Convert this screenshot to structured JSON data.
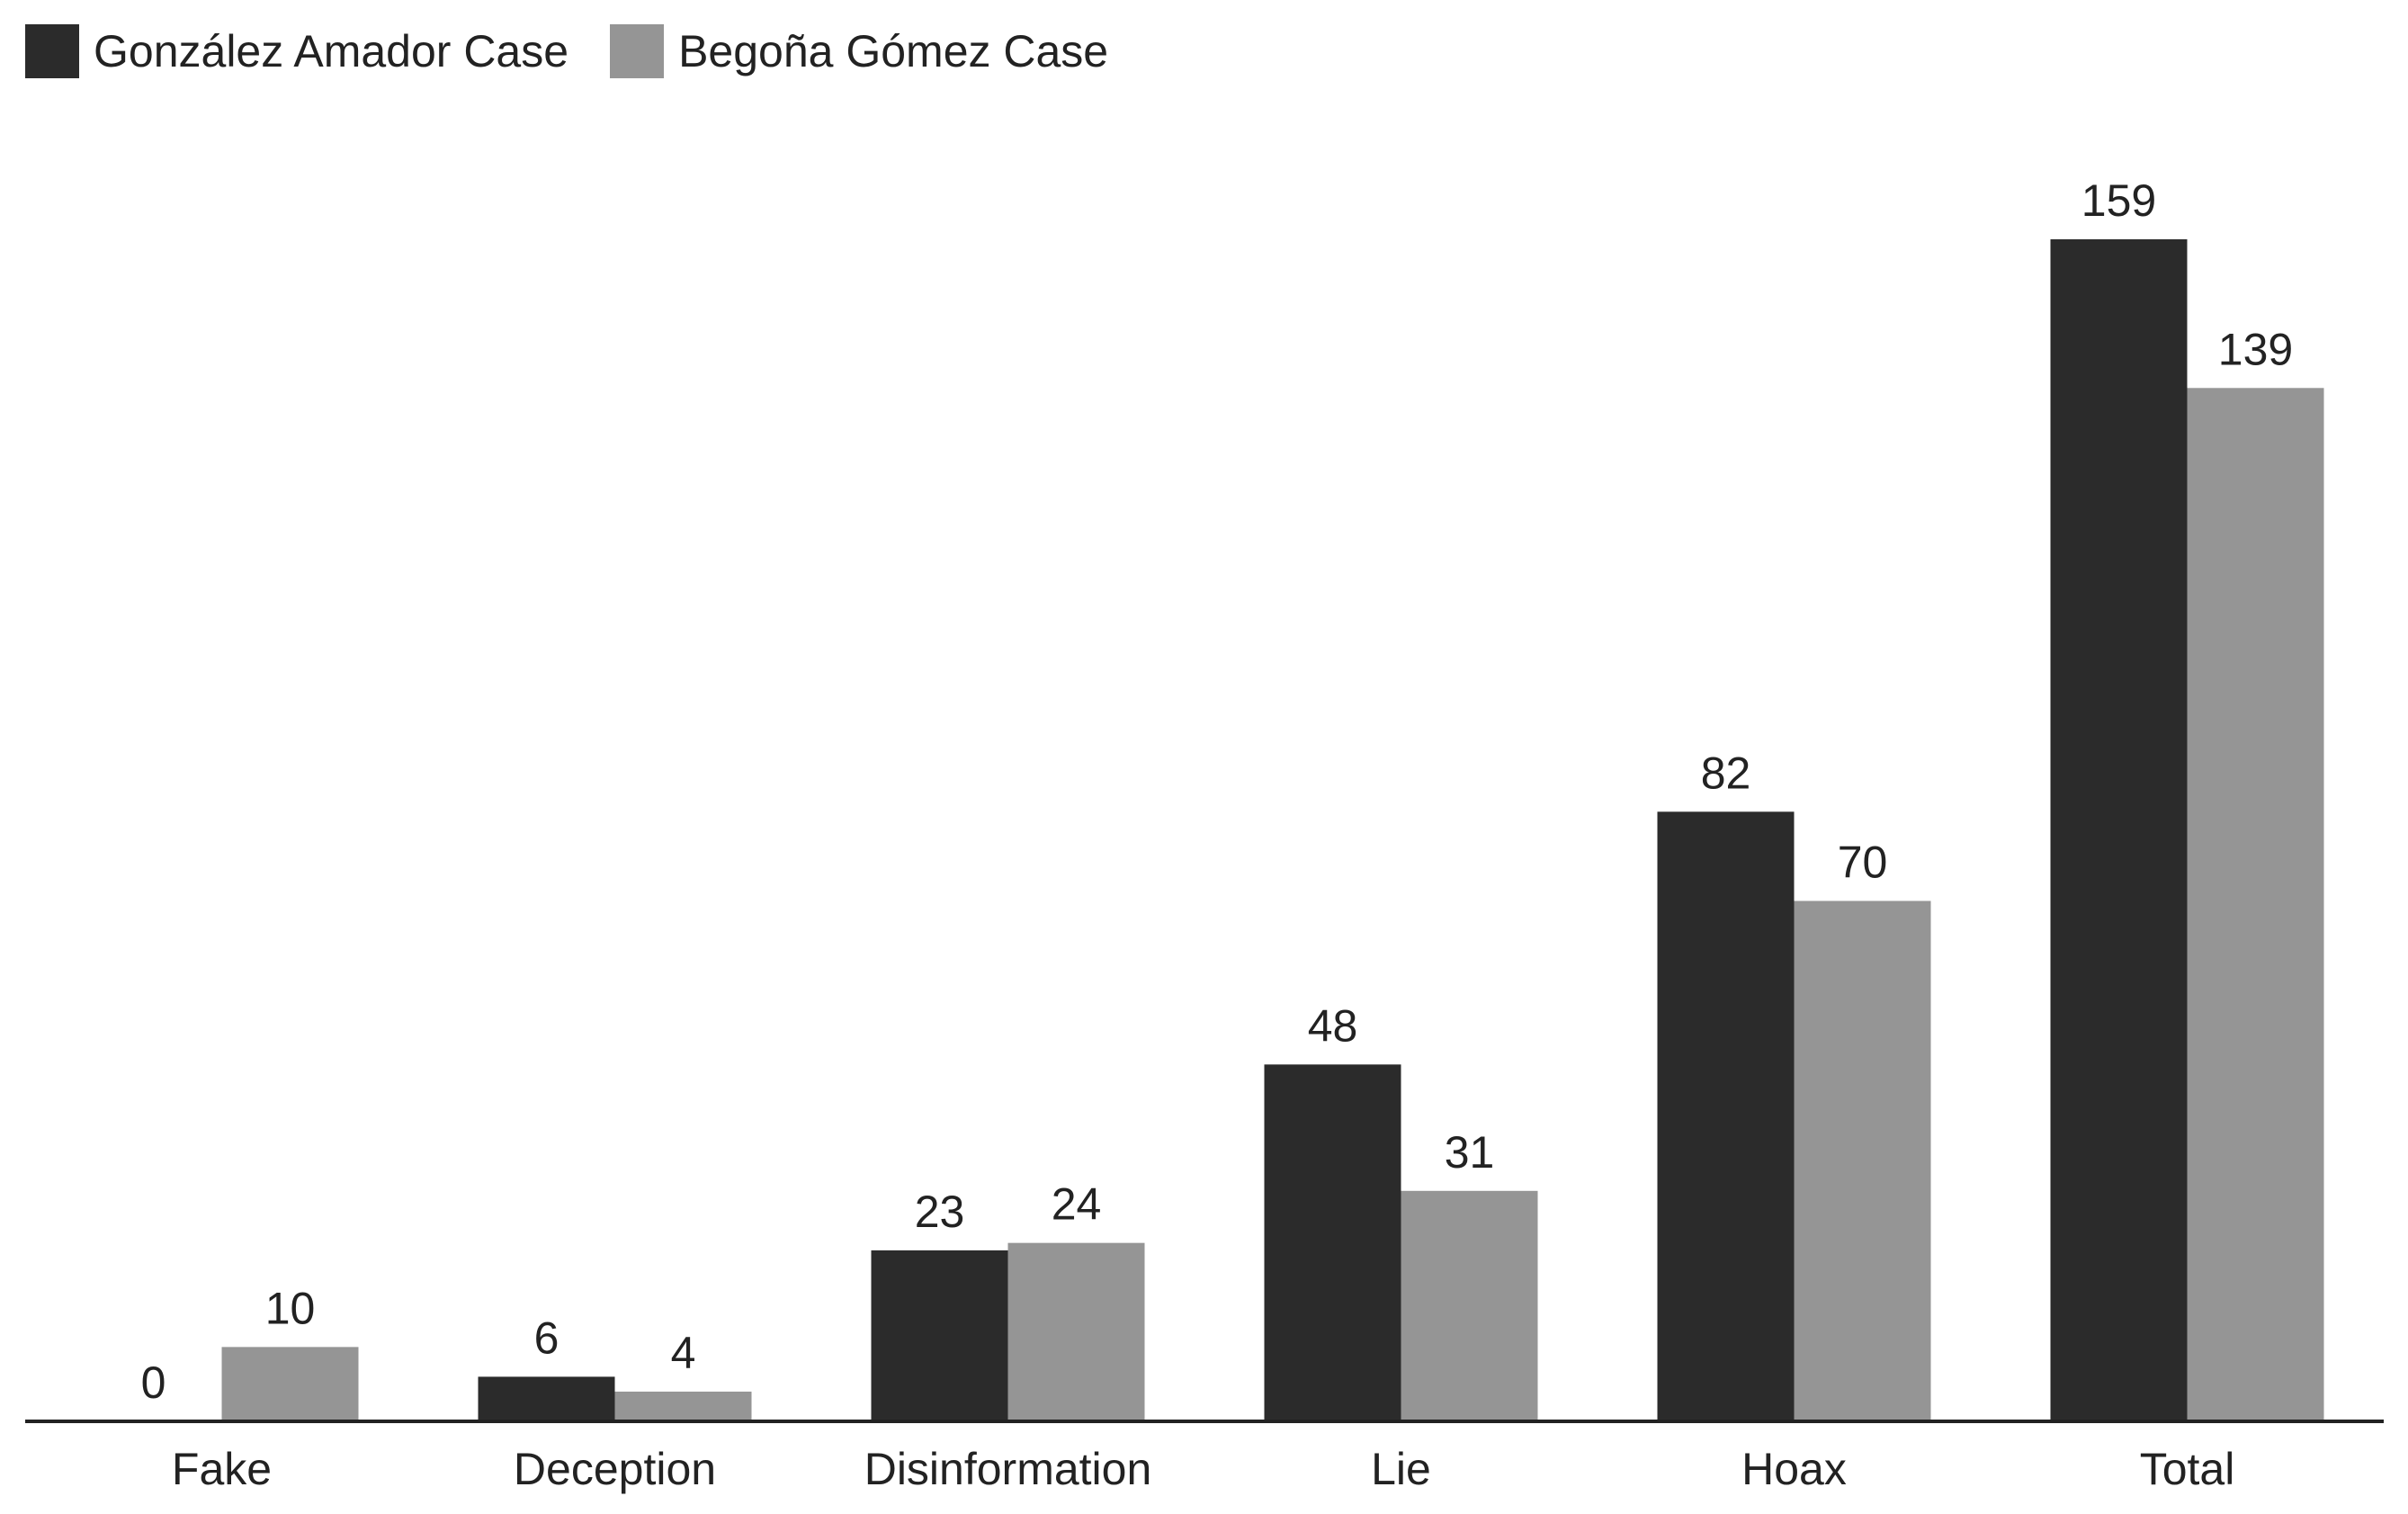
{
  "chart_data": {
    "type": "bar",
    "title": "",
    "xlabel": "",
    "ylabel": "",
    "categories": [
      "Fake",
      "Deception",
      "Disinformation",
      "Lie",
      "Hoax",
      "Total"
    ],
    "series": [
      {
        "name": "González Amador Case",
        "color": "#2b2b2b",
        "values": [
          0,
          6,
          23,
          48,
          82,
          159
        ]
      },
      {
        "name": "Begoña Gómez Case",
        "color": "#959595",
        "values": [
          10,
          4,
          24,
          31,
          70,
          139
        ]
      }
    ],
    "ylim": [
      0,
      159
    ],
    "grid": false,
    "legend_position": "top-left",
    "data_labels": true
  }
}
